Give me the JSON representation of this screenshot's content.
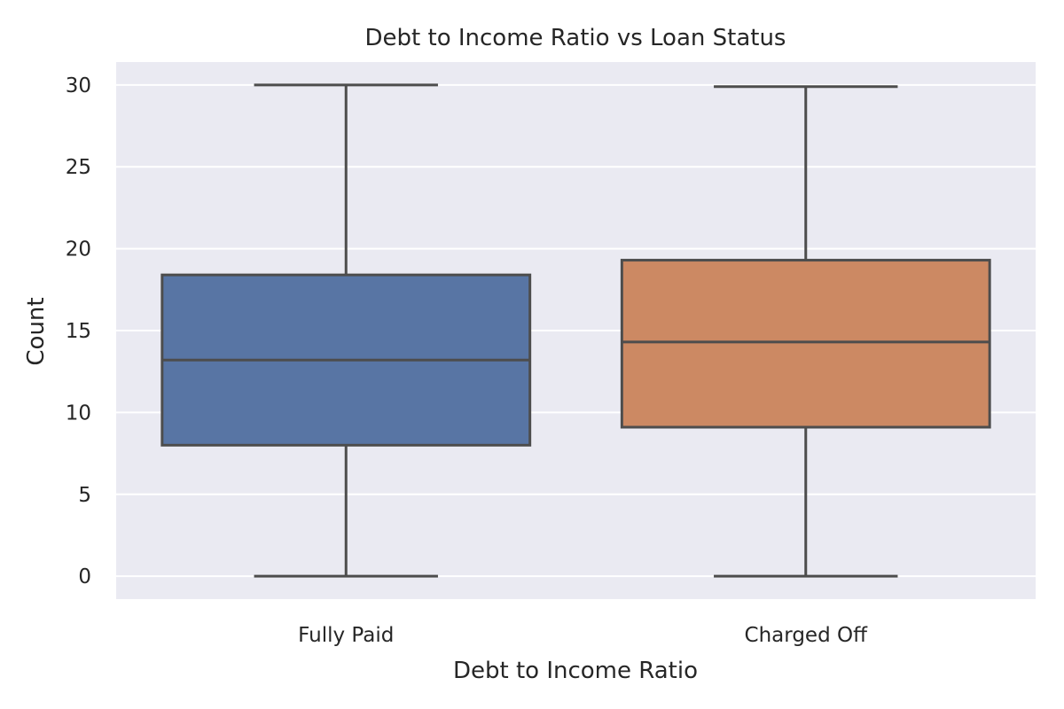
{
  "chart_data": {
    "type": "box",
    "title": "Debt to Income Ratio vs Loan Status",
    "xlabel": "Debt to Income Ratio",
    "ylabel": "Count",
    "ylim": [
      -1.4,
      31.4
    ],
    "yticks": [
      0,
      5,
      10,
      15,
      20,
      25,
      30
    ],
    "grid": true,
    "categories": [
      "Fully Paid",
      "Charged Off"
    ],
    "boxes": [
      {
        "category": "Fully Paid",
        "whisker_low": 0,
        "q1": 8.0,
        "median": 13.2,
        "q3": 18.4,
        "whisker_high": 30.0,
        "color": "#5875a4"
      },
      {
        "category": "Charged Off",
        "whisker_low": 0,
        "q1": 9.1,
        "median": 14.3,
        "q3": 19.3,
        "whisker_high": 29.9,
        "color": "#cc8963"
      }
    ]
  },
  "colors": {
    "plot_background": "#eaeaf2",
    "grid": "#ffffff",
    "box_edge": "#4d4d4d",
    "text": "#262626"
  }
}
